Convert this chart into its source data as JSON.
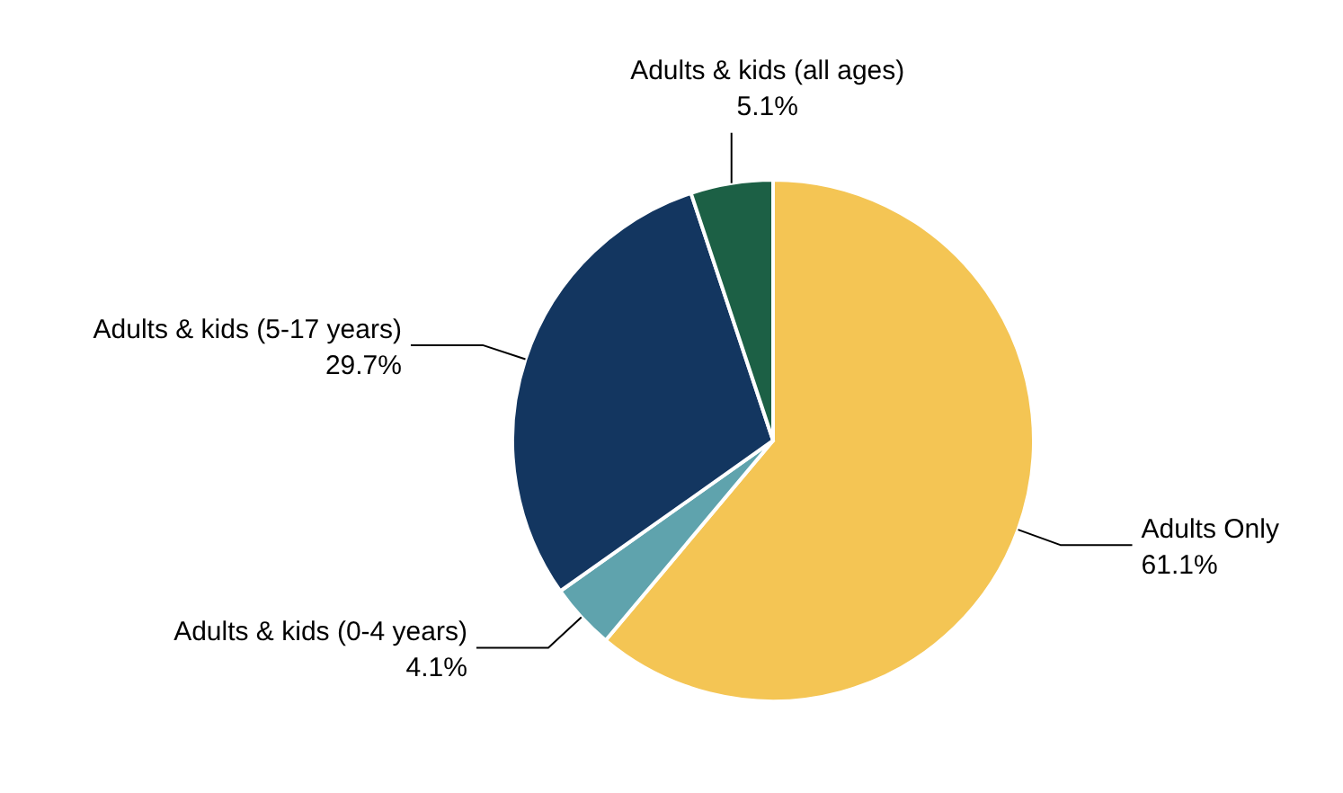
{
  "chart_data": {
    "type": "pie",
    "categories": [
      "Adults Only",
      "Adults & kids (0-4 years)",
      "Adults & kids (5-17 years)",
      "Adults & kids (all ages)"
    ],
    "values": [
      61.1,
      4.1,
      29.7,
      5.1
    ],
    "value_labels": [
      "61.1%",
      "4.1%",
      "29.7%",
      "5.1%"
    ],
    "colors": [
      "#f4c554",
      "#5fa3ad",
      "#133660",
      "#1c6045"
    ],
    "legend": false
  }
}
